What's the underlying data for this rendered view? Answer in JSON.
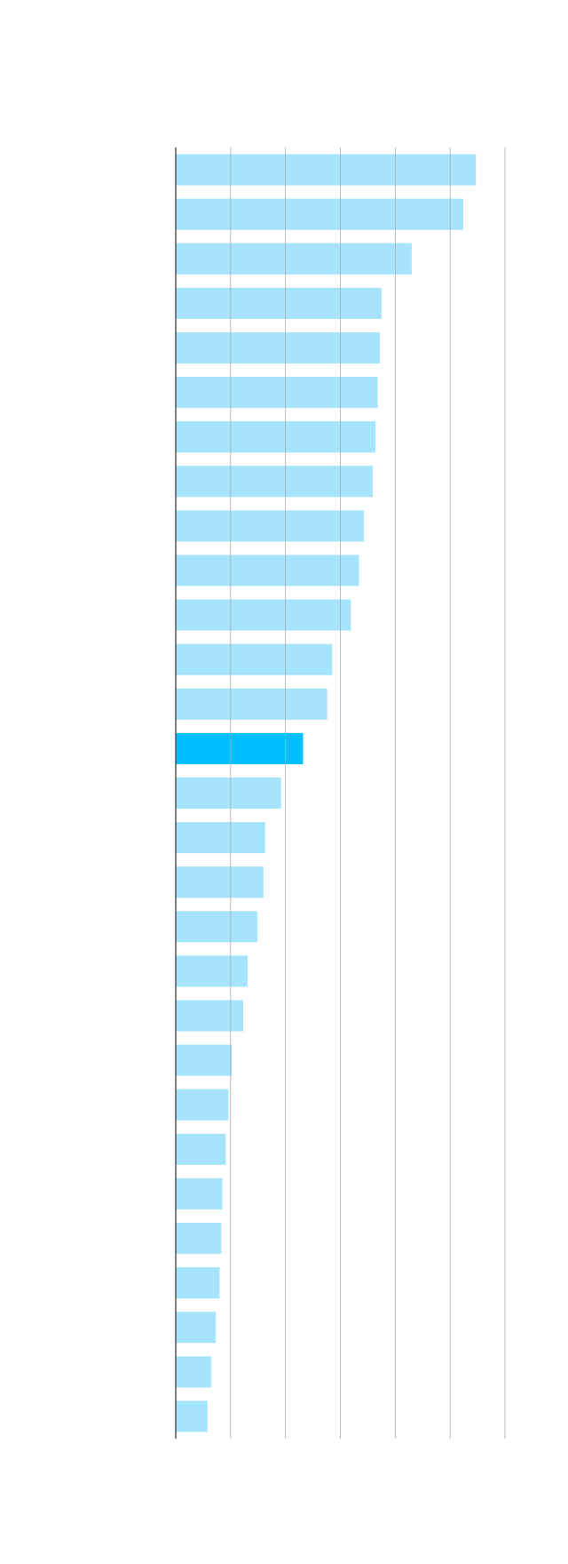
{
  "chart_data": {
    "type": "barh",
    "categories": [
      null,
      null,
      null,
      null,
      null,
      null,
      null,
      null,
      null,
      null,
      null,
      null,
      null,
      null,
      null,
      null,
      null,
      null,
      null,
      null,
      null,
      null,
      null,
      null,
      null,
      null,
      null,
      null,
      null
    ],
    "values": [
      5.47,
      5.24,
      4.3,
      3.75,
      3.72,
      3.68,
      3.64,
      3.59,
      3.43,
      3.34,
      3.19,
      2.85,
      2.76,
      2.32,
      1.92,
      1.63,
      1.6,
      1.49,
      1.31,
      1.23,
      1.02,
      0.96,
      0.91,
      0.85,
      0.83,
      0.8,
      0.73,
      0.65,
      0.58
    ],
    "colors": [
      "#a6e4fd",
      "#a6e4fd",
      "#a6e4fd",
      "#a6e4fd",
      "#a6e4fd",
      "#a6e4fd",
      "#a6e4fd",
      "#a6e4fd",
      "#a6e4fd",
      "#a6e4fd",
      "#a6e4fd",
      "#a6e4fd",
      "#a6e4fd",
      "#00bfff",
      "#a6e4fd",
      "#a6e4fd",
      "#a6e4fd",
      "#a6e4fd",
      "#a6e4fd",
      "#a6e4fd",
      "#a6e4fd",
      "#a6e4fd",
      "#a6e4fd",
      "#a6e4fd",
      "#a6e4fd",
      "#a6e4fd",
      "#a6e4fd",
      "#a6e4fd",
      "#a6e4fd"
    ],
    "xlim": [
      0,
      6
    ],
    "xticks": [
      0,
      1,
      2,
      3,
      4,
      5,
      6
    ],
    "grid": true
  }
}
